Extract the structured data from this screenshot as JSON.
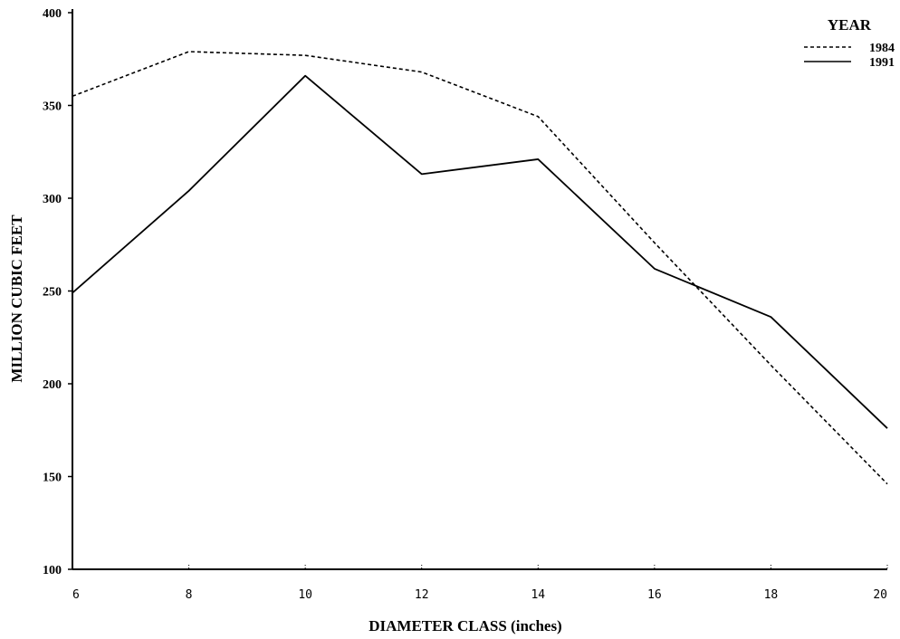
{
  "chart_data": {
    "type": "line",
    "title": "",
    "xlabel": "DIAMETER CLASS (inches)",
    "ylabel": "MILLION CUBIC FEET",
    "x": [
      6,
      8,
      10,
      12,
      14,
      16,
      18,
      20
    ],
    "xlim": [
      6,
      20
    ],
    "ylim": [
      100,
      400
    ],
    "yticks": [
      100,
      150,
      200,
      250,
      300,
      350,
      400
    ],
    "xticks": [
      6,
      8,
      10,
      12,
      14,
      16,
      18,
      20
    ],
    "grid": false,
    "legend": {
      "title": "YEAR",
      "placement": "top-right"
    },
    "series": [
      {
        "name": "1984",
        "style": "dashed",
        "values": [
          355,
          379,
          377,
          368,
          344,
          276,
          210,
          146
        ]
      },
      {
        "name": "1991",
        "style": "solid",
        "values": [
          249,
          304,
          366,
          313,
          321,
          262,
          236,
          176
        ]
      }
    ]
  }
}
